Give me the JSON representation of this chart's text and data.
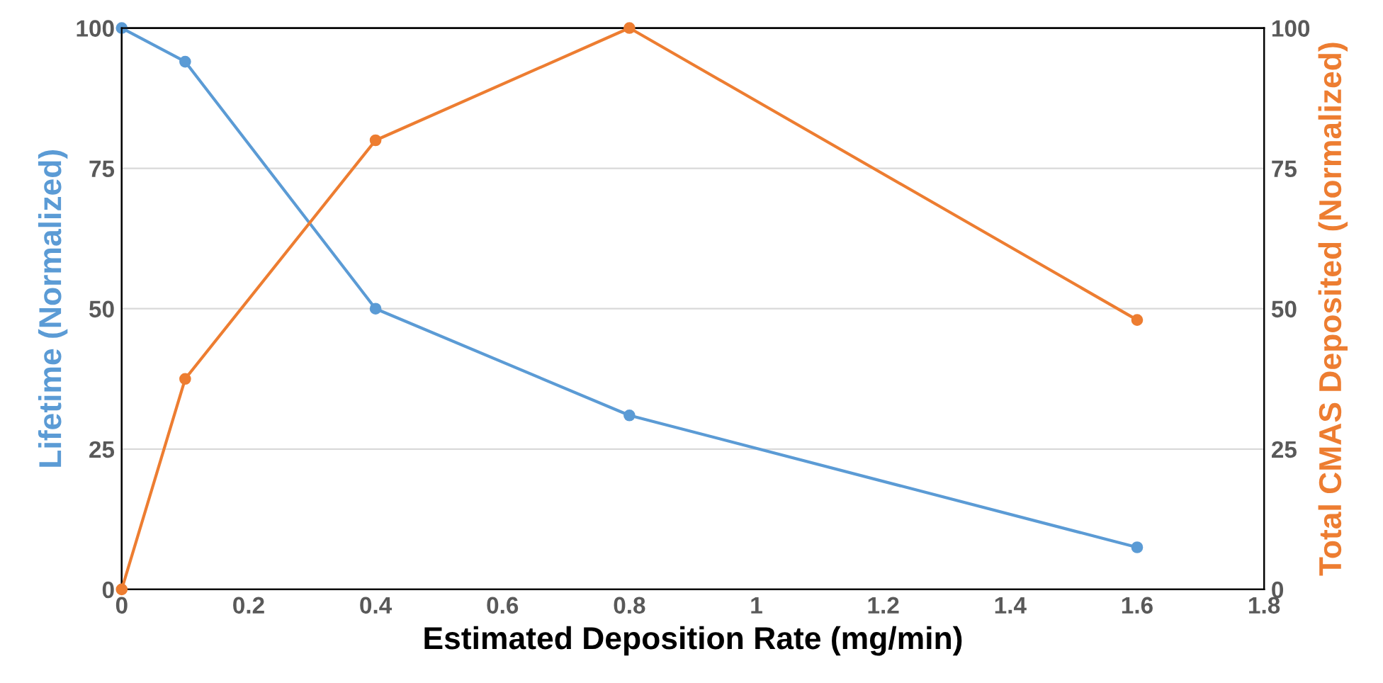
{
  "chart_data": {
    "type": "line",
    "xlabel": "Estimated Deposition Rate (mg/min)",
    "ylabel": "Lifetime (Normalized)",
    "y2label": "Total CMAS Deposited (Normalized)",
    "series": [
      {
        "color": "#5b9bd5",
        "x": [
          0,
          0.1,
          0.4,
          0.8,
          1.6
        ],
        "values": [
          100,
          94,
          50,
          31,
          7.5
        ]
      },
      {
        "color": "#ed7d31",
        "axis": "y2",
        "x": [
          0,
          0.1,
          0.4,
          0.8,
          1.6
        ],
        "values": [
          0,
          37.5,
          80,
          100,
          48
        ]
      }
    ],
    "xlim": [
      0,
      1.8
    ],
    "xticks": [
      0,
      0.2,
      0.4,
      0.6,
      0.8,
      1,
      1.2,
      1.4,
      1.6,
      1.8
    ],
    "ylim": [
      0,
      100
    ],
    "yticks": [
      0,
      25,
      50,
      75,
      100
    ],
    "y2lim": [
      0,
      100
    ],
    "y2ticks": [
      0,
      25,
      50,
      75,
      100
    ],
    "grid": "y",
    "marker": "circle",
    "line_style": "solid"
  }
}
